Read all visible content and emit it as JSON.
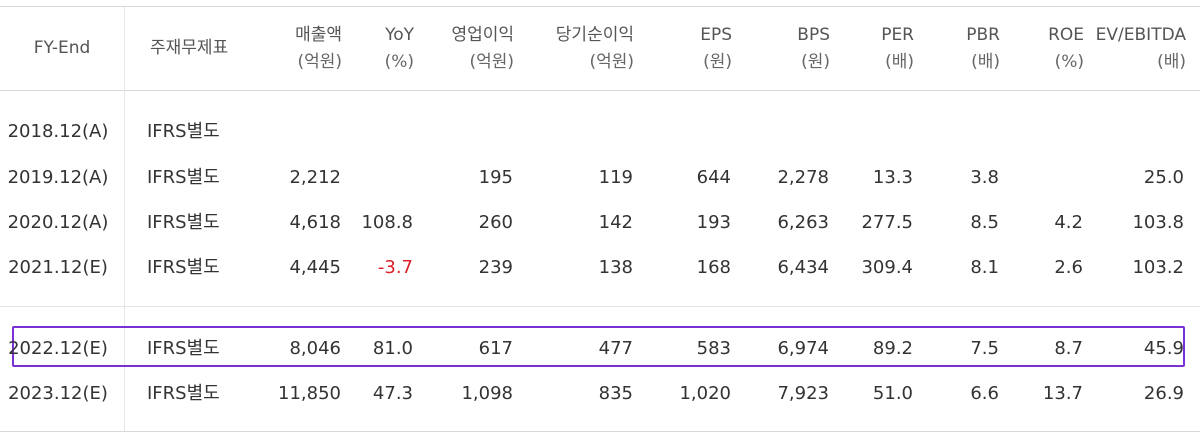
{
  "headers": [
    {
      "key": "fy",
      "l1": "FY-End",
      "l2": ""
    },
    {
      "key": "stmt",
      "l1": "주재무제표",
      "l2": ""
    },
    {
      "key": "sales",
      "l1": "매출액",
      "l2": "(억원)"
    },
    {
      "key": "yoy",
      "l1": "YoY",
      "l2": "(%)"
    },
    {
      "key": "op",
      "l1": "영업이익",
      "l2": "(억원)"
    },
    {
      "key": "net",
      "l1": "당기순이익",
      "l2": "(억원)"
    },
    {
      "key": "eps",
      "l1": "EPS",
      "l2": "(원)"
    },
    {
      "key": "bps",
      "l1": "BPS",
      "l2": "(원)"
    },
    {
      "key": "per",
      "l1": "PER",
      "l2": "(배)"
    },
    {
      "key": "pbr",
      "l1": "PBR",
      "l2": "(배)"
    },
    {
      "key": "roe",
      "l1": "ROE",
      "l2": "(%)"
    },
    {
      "key": "ev",
      "l1": "EV/EBITDA",
      "l2": "(배)"
    }
  ],
  "rows": [
    {
      "fy": "2018.12(A)",
      "stmt": "IFRS별도",
      "sales": "",
      "yoy": "",
      "op": "",
      "net": "",
      "eps": "",
      "bps": "",
      "per": "",
      "pbr": "",
      "roe": "",
      "ev": ""
    },
    {
      "fy": "2019.12(A)",
      "stmt": "IFRS별도",
      "sales": "2,212",
      "yoy": "",
      "op": "195",
      "net": "119",
      "eps": "644",
      "bps": "2,278",
      "per": "13.3",
      "pbr": "3.8",
      "roe": "",
      "ev": "25.0"
    },
    {
      "fy": "2020.12(A)",
      "stmt": "IFRS별도",
      "sales": "4,618",
      "yoy": "108.8",
      "op": "260",
      "net": "142",
      "eps": "193",
      "bps": "6,263",
      "per": "277.5",
      "pbr": "8.5",
      "roe": "4.2",
      "ev": "103.8"
    },
    {
      "fy": "2021.12(E)",
      "stmt": "IFRS별도",
      "sales": "4,445",
      "yoy": "-3.7",
      "op": "239",
      "net": "138",
      "eps": "168",
      "bps": "6,434",
      "per": "309.4",
      "pbr": "8.1",
      "roe": "2.6",
      "ev": "103.2"
    },
    {
      "fy": "2022.12(E)",
      "stmt": "IFRS별도",
      "sales": "8,046",
      "yoy": "81.0",
      "op": "617",
      "net": "477",
      "eps": "583",
      "bps": "6,974",
      "per": "89.2",
      "pbr": "7.5",
      "roe": "8.7",
      "ev": "45.9"
    },
    {
      "fy": "2023.12(E)",
      "stmt": "IFRS별도",
      "sales": "11,850",
      "yoy": "47.3",
      "op": "1,098",
      "net": "835",
      "eps": "1,020",
      "bps": "7,923",
      "per": "51.0",
      "pbr": "6.6",
      "roe": "13.7",
      "ev": "26.9"
    }
  ],
  "negative_color": "#e0202a",
  "highlight_color": "#7b2fd6"
}
